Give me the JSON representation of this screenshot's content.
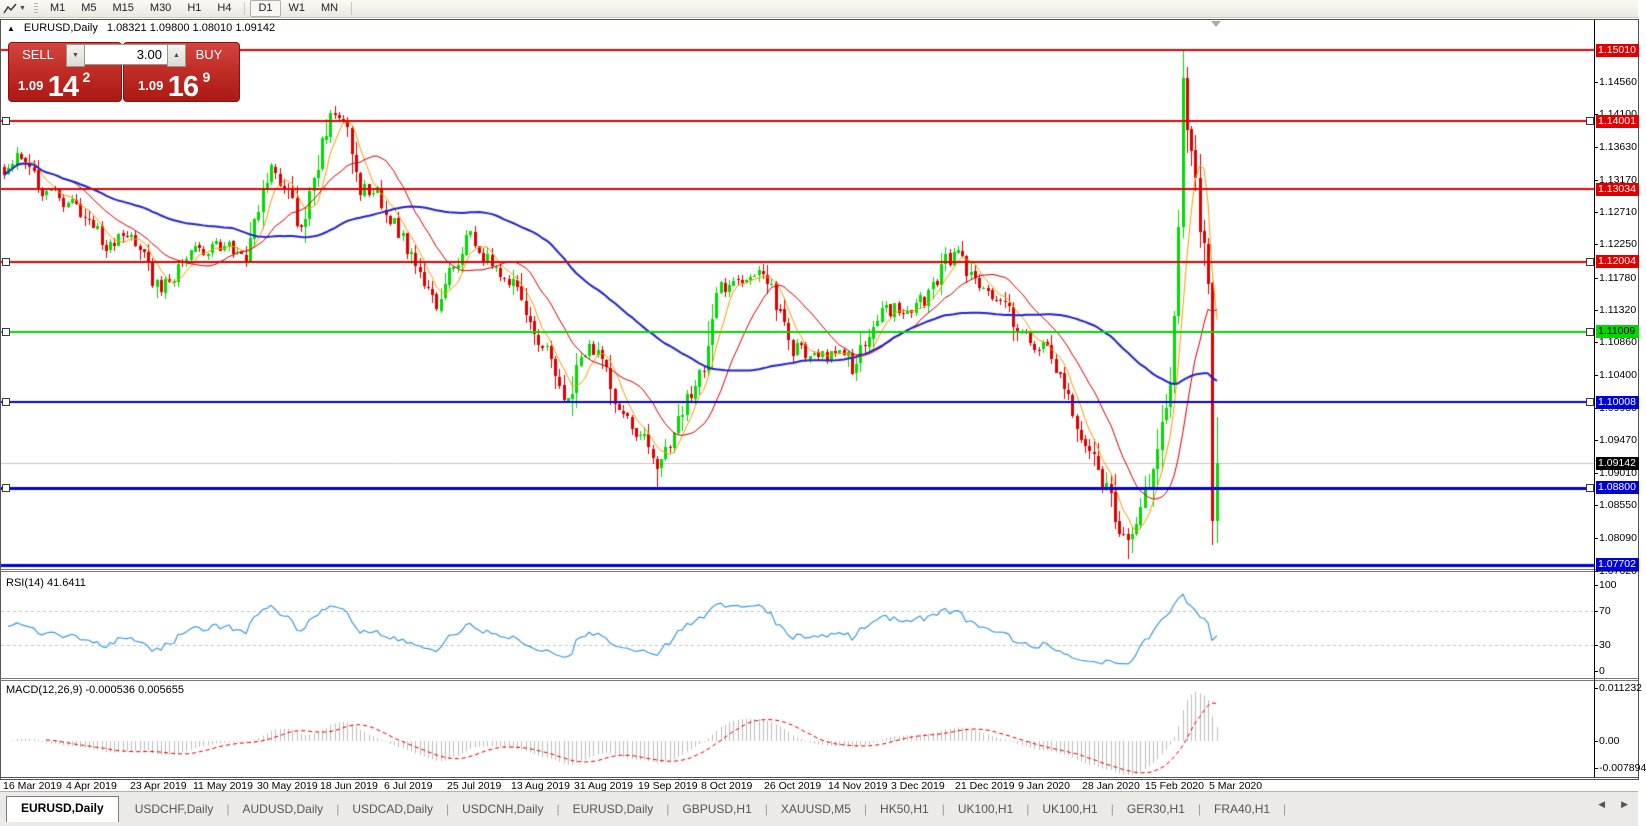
{
  "toolbar": {
    "dropdown_glyph": "▼",
    "timeframes": [
      {
        "label": "M1",
        "active": false
      },
      {
        "label": "M5",
        "active": false
      },
      {
        "label": "M15",
        "active": false
      },
      {
        "label": "M30",
        "active": false
      },
      {
        "label": "H1",
        "active": false
      },
      {
        "label": "H4",
        "active": false
      },
      {
        "label": "D1",
        "active": true
      },
      {
        "label": "W1",
        "active": false
      },
      {
        "label": "MN",
        "active": false
      }
    ]
  },
  "chart_window": {
    "collapse_glyph": "▲",
    "symbol": "EURUSD,Daily",
    "ohlc": "1.08321 1.09800 1.08010 1.09142"
  },
  "one_click": {
    "sell_label": "SELL",
    "buy_label": "BUY",
    "volume": "3.00",
    "sell_price": {
      "big": "1.09",
      "main": "14",
      "sup": "2"
    },
    "buy_price": {
      "big": "1.09",
      "main": "16",
      "sup": "9"
    }
  },
  "price_axis": {
    "ticks": [
      "1.14560",
      "1.14100",
      "1.13630",
      "1.13170",
      "1.12710",
      "1.12250",
      "1.11780",
      "1.11320",
      "1.10860",
      "1.10400",
      "1.09930",
      "1.09470",
      "1.09010",
      "1.08550",
      "1.08090",
      "1.07620"
    ]
  },
  "levels": [
    {
      "price": 1.1501,
      "label": "1.15010",
      "color": "#E00000",
      "text": "#FFFFFF",
      "width": 2,
      "handles": false
    },
    {
      "price": 1.14001,
      "label": "1.14001",
      "color": "#E00000",
      "text": "#FFFFFF",
      "width": 2,
      "handles": true
    },
    {
      "price": 1.13034,
      "label": "1.13034",
      "color": "#E00000",
      "text": "#FFFFFF",
      "width": 2,
      "handles": false
    },
    {
      "price": 1.12004,
      "label": "1.12004",
      "color": "#E00000",
      "text": "#FFFFFF",
      "width": 2,
      "handles": true
    },
    {
      "price": 1.11009,
      "label": "1.11009",
      "color": "#00D800",
      "text": "#000000",
      "width": 2,
      "handles": true
    },
    {
      "price": 1.10008,
      "label": "1.10008",
      "color": "#0000D8",
      "text": "#FFFFFF",
      "width": 2,
      "handles": true
    },
    {
      "price": 1.088,
      "label": "1.08800",
      "color": "#0000D8",
      "text": "#FFFFFF",
      "width": 3,
      "handles": true
    },
    {
      "price": 1.07702,
      "label": "1.07702",
      "color": "#0000D8",
      "text": "#FFFFFF",
      "width": 3,
      "handles": false
    }
  ],
  "current_price": {
    "price": 1.09142,
    "label": "1.09142",
    "line_color": "#C8C8C8",
    "bg": "#000000",
    "text": "#FFFFFF"
  },
  "rsi_panel": {
    "label": "RSI(14) 41.6411",
    "value": 41.6411,
    "axis": [
      {
        "v": 100,
        "label": "100"
      },
      {
        "v": 70,
        "label": "70"
      },
      {
        "v": 30,
        "label": "30"
      },
      {
        "v": 0,
        "label": "0"
      }
    ],
    "upper": 70,
    "lower": 30,
    "line_color": "#3E9BDB"
  },
  "macd_panel": {
    "label": "MACD(12,26,9) -0.000536 0.005655",
    "values": [
      -0.000536,
      0.005655
    ],
    "axis": [
      {
        "v": 0.011232,
        "label": "0.011232"
      },
      {
        "v": 0,
        "label": "0.00"
      },
      {
        "v": -0.007894,
        "label": "-0.007894"
      }
    ],
    "hist_color": "#BDBDBD",
    "signal_color": "#E00000"
  },
  "dates": [
    "16 Mar 2019",
    "4 Apr 2019",
    "23 Apr 2019",
    "11 May 2019",
    "30 May 2019",
    "18 Jun 2019",
    "6 Jul 2019",
    "25 Jul 2019",
    "13 Aug 2019",
    "31 Aug 2019",
    "19 Sep 2019",
    "8 Oct 2019",
    "26 Oct 2019",
    "14 Nov 2019",
    "3 Dec 2019",
    "21 Dec 2019",
    "9 Jan 2020",
    "28 Jan 2020",
    "15 Feb 2020",
    "5 Mar 2020"
  ],
  "tabs": [
    {
      "label": "EURUSD,Daily",
      "active": true
    },
    {
      "label": "USDCHF,Daily",
      "active": false
    },
    {
      "label": "AUDUSD,Daily",
      "active": false
    },
    {
      "label": "USDCAD,Daily",
      "active": false
    },
    {
      "label": "USDCNH,Daily",
      "active": false
    },
    {
      "label": "EURUSD,Daily",
      "active": false
    },
    {
      "label": "GBPUSD,H1",
      "active": false
    },
    {
      "label": "XAUUSD,M5",
      "active": false
    },
    {
      "label": "HK50,H1",
      "active": false
    },
    {
      "label": "UK100,H1",
      "active": false
    },
    {
      "label": "UK100,H1",
      "active": false
    },
    {
      "label": "GER30,H1",
      "active": false
    },
    {
      "label": "FRA40,H1",
      "active": false
    }
  ],
  "tab_arrows": {
    "left": "◀",
    "right": "▶"
  },
  "chart_data": {
    "type": "candlestick",
    "symbol": "EURUSD",
    "timeframe": "Daily",
    "bars": 287,
    "visible_price_range": [
      1.0764,
      1.1544
    ],
    "up_color": "#00DC00",
    "down_color": "#DE0000",
    "last_bar": {
      "o": 1.08321,
      "h": 1.098,
      "l": 1.0801,
      "c": 1.09142
    },
    "moving_averages": [
      {
        "period": 6,
        "color": "#FF9900",
        "width": 1
      },
      {
        "period": 16,
        "color": "#D40000",
        "width": 1
      },
      {
        "period": 55,
        "color": "#2222CC",
        "width": 2
      }
    ],
    "waypoints": [
      [
        0,
        1.1323
      ],
      [
        4,
        1.1355
      ],
      [
        9,
        1.1302
      ],
      [
        17,
        1.1281
      ],
      [
        25,
        1.1218
      ],
      [
        30,
        1.1243
      ],
      [
        34,
        1.119
      ],
      [
        37,
        1.1155
      ],
      [
        43,
        1.1211
      ],
      [
        50,
        1.1225
      ],
      [
        57,
        1.1211
      ],
      [
        63,
        1.1337
      ],
      [
        67,
        1.1302
      ],
      [
        70,
        1.1239
      ],
      [
        75,
        1.1365
      ],
      [
        77,
        1.1408
      ],
      [
        81,
        1.1387
      ],
      [
        84,
        1.1302
      ],
      [
        88,
        1.1295
      ],
      [
        93,
        1.1246
      ],
      [
        99,
        1.1169
      ],
      [
        102,
        1.114
      ],
      [
        106,
        1.1196
      ],
      [
        110,
        1.1239
      ],
      [
        115,
        1.119
      ],
      [
        120,
        1.1176
      ],
      [
        125,
        1.11
      ],
      [
        129,
        1.1064
      ],
      [
        133,
        1.1001
      ],
      [
        136,
        1.1071
      ],
      [
        140,
        1.1078
      ],
      [
        144,
        1.1001
      ],
      [
        147,
        1.0973
      ],
      [
        151,
        1.0945
      ],
      [
        154,
        1.0903
      ],
      [
        158,
        1.0959
      ],
      [
        161,
        1.1008
      ],
      [
        165,
        1.1043
      ],
      [
        168,
        1.1155
      ],
      [
        172,
        1.1176
      ],
      [
        175,
        1.1169
      ],
      [
        179,
        1.119
      ],
      [
        183,
        1.1127
      ],
      [
        186,
        1.1078
      ],
      [
        190,
        1.1071
      ],
      [
        193,
        1.1064
      ],
      [
        197,
        1.1085
      ],
      [
        200,
        1.105
      ],
      [
        204,
        1.11
      ],
      [
        207,
        1.114
      ],
      [
        211,
        1.1127
      ],
      [
        214,
        1.1134
      ],
      [
        218,
        1.1155
      ],
      [
        222,
        1.1204
      ],
      [
        225,
        1.1211
      ],
      [
        229,
        1.1169
      ],
      [
        232,
        1.1155
      ],
      [
        236,
        1.1148
      ],
      [
        239,
        1.11
      ],
      [
        243,
        1.1085
      ],
      [
        246,
        1.1071
      ],
      [
        250,
        1.1022
      ],
      [
        253,
        1.0973
      ],
      [
        257,
        1.0917
      ],
      [
        261,
        1.0861
      ],
      [
        263,
        1.0815
      ],
      [
        265,
        1.08
      ],
      [
        267,
        1.0835
      ],
      [
        270,
        1.0889
      ],
      [
        272,
        1.0945
      ],
      [
        275,
        1.1029
      ],
      [
        276,
        1.112
      ],
      [
        277,
        1.125
      ],
      [
        278,
        1.1464
      ],
      [
        279,
        1.139
      ],
      [
        280,
        1.136
      ],
      [
        281,
        1.132
      ],
      [
        282,
        1.124
      ],
      [
        283,
        1.123
      ],
      [
        284,
        1.117
      ],
      [
        285,
        1.0832
      ],
      [
        286,
        1.09142
      ]
    ]
  }
}
